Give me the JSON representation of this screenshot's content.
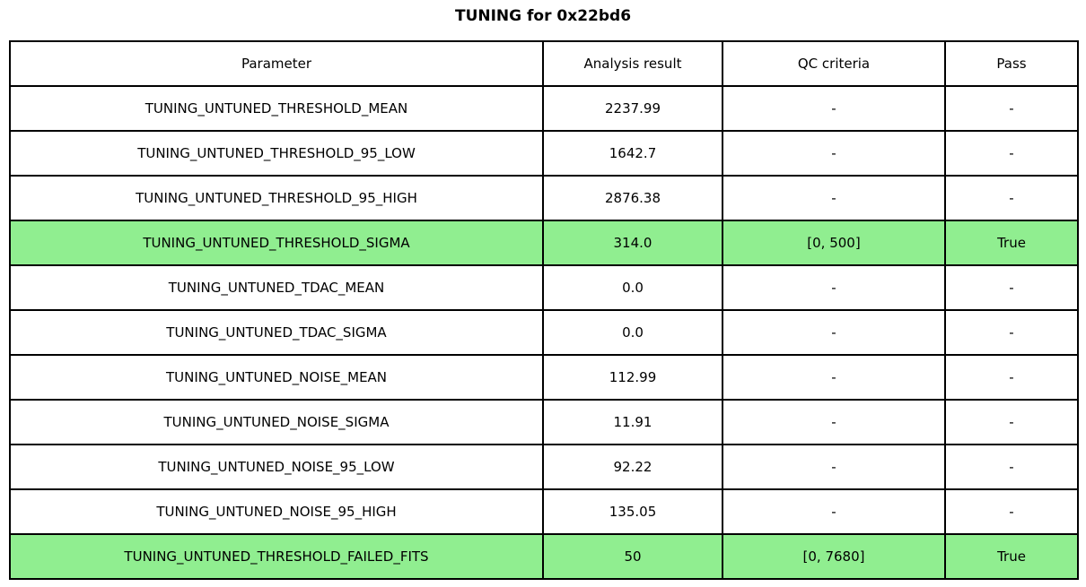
{
  "title": "TUNING for 0x22bd6",
  "colors": {
    "pass_green": "#90EE90",
    "border": "#000000",
    "background": "#ffffff",
    "text": "#000000"
  },
  "table": {
    "headers": [
      "Parameter",
      "Analysis result",
      "QC criteria",
      "Pass"
    ],
    "rows": [
      {
        "parameter": "TUNING_UNTUNED_THRESHOLD_MEAN",
        "result": "2237.99",
        "criteria": "-",
        "pass": "-",
        "highlight": false
      },
      {
        "parameter": "TUNING_UNTUNED_THRESHOLD_95_LOW",
        "result": "1642.7",
        "criteria": "-",
        "pass": "-",
        "highlight": false
      },
      {
        "parameter": "TUNING_UNTUNED_THRESHOLD_95_HIGH",
        "result": "2876.38",
        "criteria": "-",
        "pass": "-",
        "highlight": false
      },
      {
        "parameter": "TUNING_UNTUNED_THRESHOLD_SIGMA",
        "result": "314.0",
        "criteria": "[0, 500]",
        "pass": "True",
        "highlight": true
      },
      {
        "parameter": "TUNING_UNTUNED_TDAC_MEAN",
        "result": "0.0",
        "criteria": "-",
        "pass": "-",
        "highlight": false
      },
      {
        "parameter": "TUNING_UNTUNED_TDAC_SIGMA",
        "result": "0.0",
        "criteria": "-",
        "pass": "-",
        "highlight": false
      },
      {
        "parameter": "TUNING_UNTUNED_NOISE_MEAN",
        "result": "112.99",
        "criteria": "-",
        "pass": "-",
        "highlight": false
      },
      {
        "parameter": "TUNING_UNTUNED_NOISE_SIGMA",
        "result": "11.91",
        "criteria": "-",
        "pass": "-",
        "highlight": false
      },
      {
        "parameter": "TUNING_UNTUNED_NOISE_95_LOW",
        "result": "92.22",
        "criteria": "-",
        "pass": "-",
        "highlight": false
      },
      {
        "parameter": "TUNING_UNTUNED_NOISE_95_HIGH",
        "result": "135.05",
        "criteria": "-",
        "pass": "-",
        "highlight": false
      },
      {
        "parameter": "TUNING_UNTUNED_THRESHOLD_FAILED_FITS",
        "result": "50",
        "criteria": "[0, 7680]",
        "pass": "True",
        "highlight": true
      }
    ]
  },
  "chart_data": {
    "type": "table",
    "title": "TUNING for 0x22bd6",
    "columns": [
      "Parameter",
      "Analysis result",
      "QC criteria",
      "Pass"
    ],
    "rows": [
      [
        "TUNING_UNTUNED_THRESHOLD_MEAN",
        "2237.99",
        "-",
        "-"
      ],
      [
        "TUNING_UNTUNED_THRESHOLD_95_LOW",
        "1642.7",
        "-",
        "-"
      ],
      [
        "TUNING_UNTUNED_THRESHOLD_95_HIGH",
        "2876.38",
        "-",
        "-"
      ],
      [
        "TUNING_UNTUNED_THRESHOLD_SIGMA",
        "314.0",
        "[0, 500]",
        "True"
      ],
      [
        "TUNING_UNTUNED_TDAC_MEAN",
        "0.0",
        "-",
        "-"
      ],
      [
        "TUNING_UNTUNED_TDAC_SIGMA",
        "0.0",
        "-",
        "-"
      ],
      [
        "TUNING_UNTUNED_NOISE_MEAN",
        "112.99",
        "-",
        "-"
      ],
      [
        "TUNING_UNTUNED_NOISE_SIGMA",
        "11.91",
        "-",
        "-"
      ],
      [
        "TUNING_UNTUNED_NOISE_95_LOW",
        "92.22",
        "-",
        "-"
      ],
      [
        "TUNING_UNTUNED_NOISE_95_HIGH",
        "135.05",
        "-",
        "-"
      ],
      [
        "TUNING_UNTUNED_THRESHOLD_FAILED_FITS",
        "50",
        "[0, 7680]",
        "True"
      ]
    ],
    "highlighted_rows": [
      3,
      10
    ],
    "highlight_color": "#90EE90",
    "layout": {
      "grid": true,
      "border_color": "#000000",
      "title_position": "top-center"
    }
  }
}
